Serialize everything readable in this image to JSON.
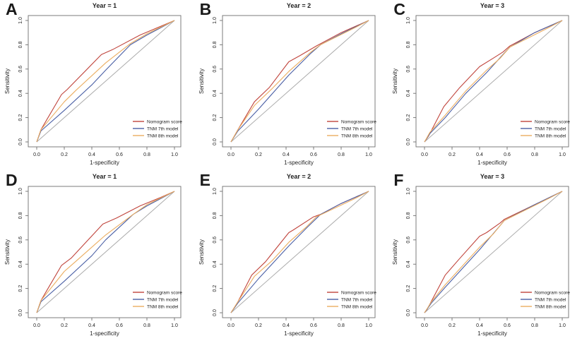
{
  "figure": {
    "background": "#ffffff",
    "legend_labels": [
      "Nomogram score",
      "TNM 7th model",
      "TNM 8th model"
    ],
    "colors": {
      "nomogram": "#c0443c",
      "tnm7": "#4a5fa5",
      "tnm8": "#ebad60",
      "diagonal": "#ababab",
      "box": "#6e6e6e",
      "text": "#222222"
    }
  },
  "chart_data": [
    {
      "type": "line",
      "panel_letter": "A",
      "title": "Year = 1",
      "xlabel": "1-specificity",
      "ylabel": "Sensitivity",
      "xlim": [
        0,
        1
      ],
      "ylim": [
        0,
        1
      ],
      "xticks": [
        "0.0",
        "0.2",
        "0.4",
        "0.6",
        "0.8",
        "1.0"
      ],
      "yticks": [
        "0.0",
        "0.2",
        "0.4",
        "0.6",
        "0.8",
        "1.0"
      ],
      "grid": false,
      "diagonal_reference": true,
      "legend_position": "bottom-right",
      "series": [
        {
          "name": "Nomogram score",
          "color": "#c0443c",
          "x": [
            0,
            0.03,
            0.18,
            0.22,
            0.47,
            0.55,
            0.75,
            1
          ],
          "y": [
            0,
            0.1,
            0.39,
            0.43,
            0.72,
            0.76,
            0.88,
            1
          ]
        },
        {
          "name": "TNM 7th model",
          "color": "#4a5fa5",
          "x": [
            0,
            0.03,
            0.2,
            0.4,
            0.5,
            0.68,
            0.8,
            1
          ],
          "y": [
            0,
            0.09,
            0.26,
            0.47,
            0.59,
            0.8,
            0.88,
            1
          ]
        },
        {
          "name": "TNM 8th model",
          "color": "#ebad60",
          "x": [
            0,
            0.03,
            0.2,
            0.28,
            0.5,
            0.68,
            0.8,
            1
          ],
          "y": [
            0,
            0.1,
            0.33,
            0.42,
            0.65,
            0.81,
            0.89,
            1
          ]
        }
      ]
    },
    {
      "type": "line",
      "panel_letter": "B",
      "title": "Year = 2",
      "xlabel": "1-specificity",
      "ylabel": "Sensitivity",
      "xlim": [
        0,
        1
      ],
      "ylim": [
        0,
        1
      ],
      "xticks": [
        "0.0",
        "0.2",
        "0.4",
        "0.6",
        "0.8",
        "1.0"
      ],
      "yticks": [
        "0.0",
        "0.2",
        "0.4",
        "0.6",
        "0.8",
        "1.0"
      ],
      "grid": false,
      "diagonal_reference": true,
      "legend_position": "bottom-right",
      "series": [
        {
          "name": "Nomogram score",
          "color": "#c0443c",
          "x": [
            0,
            0.05,
            0.17,
            0.28,
            0.42,
            0.5,
            0.62,
            0.8,
            1
          ],
          "y": [
            0,
            0.1,
            0.33,
            0.45,
            0.66,
            0.71,
            0.79,
            0.9,
            1
          ]
        },
        {
          "name": "TNM 7th model",
          "color": "#4a5fa5",
          "x": [
            0,
            0.05,
            0.2,
            0.42,
            0.58,
            0.65,
            0.8,
            1
          ],
          "y": [
            0,
            0.09,
            0.27,
            0.55,
            0.73,
            0.8,
            0.89,
            1
          ]
        },
        {
          "name": "TNM 8th model",
          "color": "#ebad60",
          "x": [
            0,
            0.05,
            0.17,
            0.3,
            0.42,
            0.58,
            0.65,
            0.9,
            1
          ],
          "y": [
            0,
            0.1,
            0.3,
            0.44,
            0.58,
            0.74,
            0.8,
            0.94,
            1
          ]
        }
      ]
    },
    {
      "type": "line",
      "panel_letter": "C",
      "title": "Year = 3",
      "xlabel": "1-specificity",
      "ylabel": "Sensitivity",
      "xlim": [
        0,
        1
      ],
      "ylim": [
        0,
        1
      ],
      "xticks": [
        "0.0",
        "0.2",
        "0.4",
        "0.6",
        "0.8",
        "1.0"
      ],
      "yticks": [
        "0.0",
        "0.2",
        "0.4",
        "0.6",
        "0.8",
        "1.0"
      ],
      "grid": false,
      "diagonal_reference": true,
      "legend_position": "bottom-right",
      "series": [
        {
          "name": "Nomogram score",
          "color": "#c0443c",
          "x": [
            0,
            0.03,
            0.14,
            0.25,
            0.4,
            0.5,
            0.57,
            0.62,
            0.8,
            1
          ],
          "y": [
            0,
            0.05,
            0.29,
            0.44,
            0.62,
            0.69,
            0.74,
            0.79,
            0.9,
            1
          ]
        },
        {
          "name": "TNM 7th model",
          "color": "#4a5fa5",
          "x": [
            0,
            0.04,
            0.15,
            0.3,
            0.45,
            0.57,
            0.62,
            0.8,
            1
          ],
          "y": [
            0,
            0.07,
            0.2,
            0.4,
            0.57,
            0.72,
            0.78,
            0.9,
            1
          ]
        },
        {
          "name": "TNM 8th model",
          "color": "#ebad60",
          "x": [
            0,
            0.04,
            0.15,
            0.3,
            0.45,
            0.55,
            0.62,
            0.9,
            1
          ],
          "y": [
            0,
            0.08,
            0.22,
            0.42,
            0.59,
            0.69,
            0.78,
            0.94,
            1
          ]
        }
      ]
    },
    {
      "type": "line",
      "panel_letter": "D",
      "title": "Year = 1",
      "xlabel": "1-specificity",
      "ylabel": "Sensitivity",
      "xlim": [
        0,
        1
      ],
      "ylim": [
        0,
        1
      ],
      "xticks": [
        "0.0",
        "0.2",
        "0.4",
        "0.6",
        "0.8",
        "1.0"
      ],
      "yticks": [
        "0.0",
        "0.2",
        "0.4",
        "0.6",
        "0.8",
        "1.0"
      ],
      "grid": false,
      "diagonal_reference": true,
      "legend_position": "bottom-right",
      "series": [
        {
          "name": "Nomogram score",
          "color": "#c0443c",
          "x": [
            0,
            0.03,
            0.18,
            0.25,
            0.48,
            0.58,
            0.75,
            0.9,
            1
          ],
          "y": [
            0,
            0.1,
            0.39,
            0.45,
            0.73,
            0.78,
            0.88,
            0.95,
            1
          ]
        },
        {
          "name": "TNM 7th model",
          "color": "#4a5fa5",
          "x": [
            0,
            0.03,
            0.2,
            0.4,
            0.5,
            0.7,
            0.8,
            1
          ],
          "y": [
            0,
            0.09,
            0.26,
            0.47,
            0.6,
            0.81,
            0.88,
            1
          ]
        },
        {
          "name": "TNM 8th model",
          "color": "#ebad60",
          "x": [
            0,
            0.03,
            0.2,
            0.28,
            0.5,
            0.7,
            0.8,
            1
          ],
          "y": [
            0,
            0.1,
            0.34,
            0.42,
            0.64,
            0.81,
            0.89,
            1
          ]
        }
      ]
    },
    {
      "type": "line",
      "panel_letter": "E",
      "title": "Year = 2",
      "xlabel": "1-specificity",
      "ylabel": "Sensitivity",
      "xlim": [
        0,
        1
      ],
      "ylim": [
        0,
        1
      ],
      "xticks": [
        "0.0",
        "0.2",
        "0.4",
        "0.6",
        "0.8",
        "1.0"
      ],
      "yticks": [
        "0.0",
        "0.2",
        "0.4",
        "0.6",
        "0.8",
        "1.0"
      ],
      "grid": false,
      "diagonal_reference": true,
      "legend_position": "bottom-right",
      "series": [
        {
          "name": "Nomogram score",
          "color": "#c0443c",
          "x": [
            0,
            0.05,
            0.15,
            0.25,
            0.42,
            0.45,
            0.6,
            0.65,
            0.8,
            1
          ],
          "y": [
            0,
            0.09,
            0.31,
            0.42,
            0.66,
            0.68,
            0.79,
            0.81,
            0.9,
            1
          ]
        },
        {
          "name": "TNM 7th model",
          "color": "#4a5fa5",
          "x": [
            0,
            0.05,
            0.2,
            0.42,
            0.55,
            0.65,
            0.8,
            1
          ],
          "y": [
            0,
            0.08,
            0.28,
            0.55,
            0.7,
            0.81,
            0.9,
            1
          ]
        },
        {
          "name": "TNM 8th model",
          "color": "#ebad60",
          "x": [
            0,
            0.05,
            0.17,
            0.3,
            0.42,
            0.55,
            0.62,
            0.9,
            1
          ],
          "y": [
            0,
            0.09,
            0.3,
            0.43,
            0.58,
            0.71,
            0.79,
            0.94,
            1
          ]
        }
      ]
    },
    {
      "type": "line",
      "panel_letter": "F",
      "title": "Year = 3",
      "xlabel": "1-specificity",
      "ylabel": "Sensitivity",
      "xlim": [
        0,
        1
      ],
      "ylim": [
        0,
        1
      ],
      "xticks": [
        "0.0",
        "0.2",
        "0.4",
        "0.6",
        "0.8",
        "1.0"
      ],
      "yticks": [
        "0.0",
        "0.2",
        "0.4",
        "0.6",
        "0.8",
        "1.0"
      ],
      "grid": false,
      "diagonal_reference": true,
      "legend_position": "bottom-right",
      "series": [
        {
          "name": "Nomogram score",
          "color": "#c0443c",
          "x": [
            0,
            0.02,
            0.15,
            0.25,
            0.4,
            0.45,
            0.55,
            0.58,
            0.8,
            1
          ],
          "y": [
            0,
            0.03,
            0.31,
            0.44,
            0.63,
            0.66,
            0.74,
            0.77,
            0.89,
            1
          ]
        },
        {
          "name": "TNM 7th model",
          "color": "#4a5fa5",
          "x": [
            0,
            0.05,
            0.15,
            0.4,
            0.55,
            0.58,
            0.8,
            1
          ],
          "y": [
            0,
            0.08,
            0.21,
            0.52,
            0.72,
            0.76,
            0.89,
            1
          ]
        },
        {
          "name": "TNM 8th model",
          "color": "#ebad60",
          "x": [
            0,
            0.05,
            0.15,
            0.4,
            0.5,
            0.58,
            0.9,
            1
          ],
          "y": [
            0,
            0.09,
            0.23,
            0.54,
            0.65,
            0.76,
            0.94,
            1
          ]
        }
      ]
    }
  ]
}
